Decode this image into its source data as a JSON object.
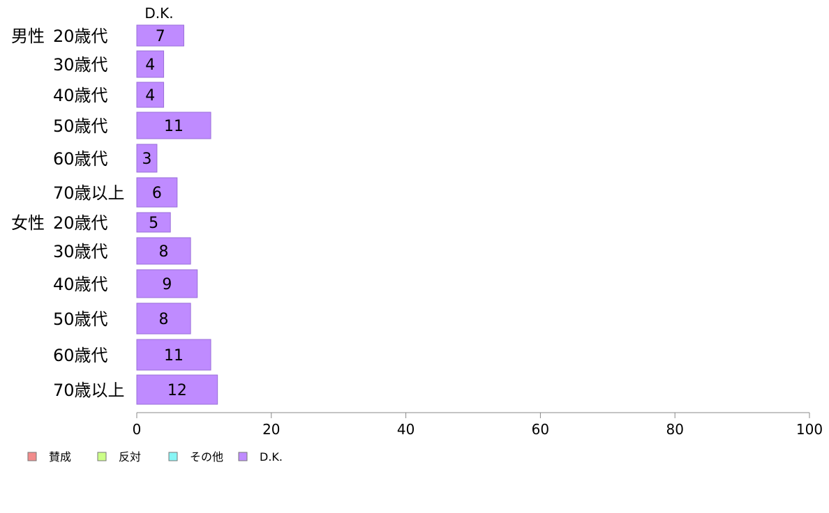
{
  "chart_data": {
    "type": "bar",
    "orientation": "horizontal",
    "series_title": "D.K.",
    "groups": [
      {
        "label": "男性",
        "categories": [
          "20歳代",
          "30歳代",
          "40歳代",
          "50歳代",
          "60歳代",
          "70歳以上"
        ]
      },
      {
        "label": "女性",
        "categories": [
          "20歳代",
          "30歳代",
          "40歳代",
          "50歳代",
          "60歳代",
          "70歳以上"
        ]
      }
    ],
    "series": [
      {
        "name": "D.K.",
        "color": "#bf8bff",
        "values": [
          7,
          4,
          4,
          11,
          3,
          6,
          5,
          8,
          9,
          8,
          11,
          12
        ]
      }
    ],
    "xlim": [
      0,
      100
    ],
    "xticks": [
      "0",
      "20",
      "40",
      "60",
      "80",
      "100"
    ],
    "grid": false,
    "legend": {
      "position": "bottom-left",
      "items": [
        {
          "label": "賛成",
          "color": "#f28c8c"
        },
        {
          "label": "反対",
          "color": "#ccff88"
        },
        {
          "label": "その他",
          "color": "#88f5f5"
        },
        {
          "label": "D.K.",
          "color": "#bf8bff"
        }
      ]
    }
  }
}
